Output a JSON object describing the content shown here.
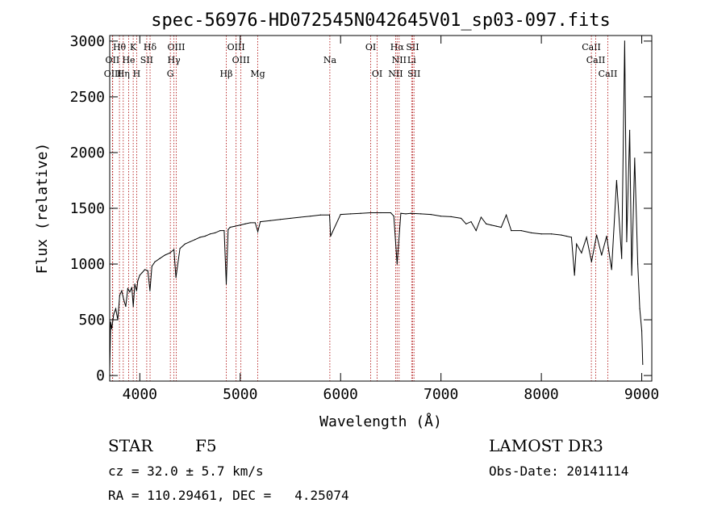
{
  "chart_data": {
    "type": "line",
    "title": "spec-56976-HD072545N042645V01_sp03-097.fits",
    "xlabel": "Wavelength (Å)",
    "ylabel": "Flux (relative)",
    "xlim": [
      3700,
      9100
    ],
    "ylim": [
      -50,
      3050
    ],
    "xticks": [
      4000,
      5000,
      6000,
      7000,
      8000,
      9000
    ],
    "yticks": [
      0,
      500,
      1000,
      1500,
      2000,
      2500,
      3000
    ],
    "grid": false,
    "line_color": "#000000",
    "marker_color": "#aa0000",
    "series": [
      {
        "x": [
          3700,
          3710,
          3720,
          3740,
          3760,
          3780,
          3800,
          3820,
          3840,
          3860,
          3880,
          3900,
          3920,
          3935,
          3950,
          3968,
          3980,
          4000,
          4020,
          4050,
          4080,
          4101,
          4120,
          4150,
          4200,
          4250,
          4300,
          4340,
          4360,
          4400,
          4450,
          4500,
          4550,
          4600,
          4650,
          4700,
          4750,
          4800,
          4840,
          4861,
          4880,
          4900,
          4950,
          5000,
          5050,
          5100,
          5150,
          5175,
          5200,
          5300,
          5400,
          5500,
          5600,
          5700,
          5800,
          5890,
          5900,
          6000,
          6100,
          6200,
          6300,
          6400,
          6500,
          6530,
          6563,
          6600,
          6650,
          6700,
          6800,
          6900,
          7000,
          7100,
          7200,
          7250,
          7300,
          7350,
          7400,
          7450,
          7500,
          7550,
          7600,
          7650,
          7700,
          7800,
          7900,
          8000,
          8100,
          8200,
          8250,
          8300,
          8330,
          8350,
          8400,
          8450,
          8500,
          8550,
          8600,
          8650,
          8700,
          8750,
          8800,
          8830,
          8850,
          8880,
          8900,
          8930,
          8960,
          8980,
          9000,
          9010
        ],
        "y": [
          50,
          480,
          420,
          550,
          600,
          500,
          720,
          760,
          680,
          620,
          780,
          750,
          790,
          620,
          820,
          760,
          850,
          900,
          920,
          950,
          940,
          760,
          980,
          1020,
          1050,
          1080,
          1100,
          1130,
          880,
          1140,
          1180,
          1200,
          1220,
          1240,
          1250,
          1270,
          1280,
          1300,
          1300,
          820,
          1310,
          1330,
          1340,
          1350,
          1360,
          1370,
          1370,
          1290,
          1380,
          1390,
          1400,
          1410,
          1420,
          1430,
          1440,
          1440,
          1250,
          1445,
          1450,
          1455,
          1460,
          1460,
          1460,
          1430,
          1000,
          1455,
          1450,
          1455,
          1450,
          1445,
          1430,
          1425,
          1410,
          1360,
          1380,
          1300,
          1420,
          1360,
          1350,
          1340,
          1330,
          1440,
          1300,
          1300,
          1280,
          1270,
          1270,
          1260,
          1250,
          1240,
          900,
          1180,
          1100,
          1240,
          1020,
          1260,
          1080,
          1250,
          950,
          1750,
          1050,
          3000,
          1200,
          2200,
          900,
          1950,
          1000,
          600,
          400,
          100
        ]
      }
    ],
    "lines": [
      {
        "label": "Hθ",
        "x": 3797,
        "row": 1
      },
      {
        "label": "K",
        "x": 3934,
        "row": 1
      },
      {
        "label": "Hδ",
        "x": 4102,
        "row": 1
      },
      {
        "label": "OIII",
        "x": 4363,
        "row": 1
      },
      {
        "label": "OIII",
        "x": 4959,
        "row": 1
      },
      {
        "label": "OI",
        "x": 6300,
        "row": 1
      },
      {
        "label": "Hα",
        "x": 6563,
        "row": 1
      },
      {
        "label": "SII",
        "x": 6717,
        "row": 1
      },
      {
        "label": "CaII",
        "x": 8498,
        "row": 1
      },
      {
        "label": "OII",
        "x": 3727,
        "row": 2
      },
      {
        "label": "He",
        "x": 3889,
        "row": 2
      },
      {
        "label": "SII",
        "x": 4069,
        "row": 2
      },
      {
        "label": "Hγ",
        "x": 4340,
        "row": 2
      },
      {
        "label": "OIII",
        "x": 5007,
        "row": 2
      },
      {
        "label": "Na",
        "x": 5893,
        "row": 2
      },
      {
        "label": "NII",
        "x": 6583,
        "row": 2
      },
      {
        "label": "Li",
        "x": 6708,
        "row": 2
      },
      {
        "label": "CaII",
        "x": 8542,
        "row": 2
      },
      {
        "label": "OIII",
        "x": 3730,
        "row": 3
      },
      {
        "label": "Hη",
        "x": 3835,
        "row": 3
      },
      {
        "label": "H",
        "x": 3969,
        "row": 3
      },
      {
        "label": "G",
        "x": 4304,
        "row": 3
      },
      {
        "label": "Hβ",
        "x": 4861,
        "row": 3
      },
      {
        "label": "Mg",
        "x": 5175,
        "row": 3
      },
      {
        "label": "OI",
        "x": 6364,
        "row": 3
      },
      {
        "label": "NII",
        "x": 6548,
        "row": 3
      },
      {
        "label": "SII",
        "x": 6731,
        "row": 3
      },
      {
        "label": "CaII",
        "x": 8662,
        "row": 3
      }
    ]
  },
  "info": {
    "object_class": "STAR",
    "subclass": "F5",
    "survey": "LAMOST DR3",
    "cz": "cz = 32.0 ± 5.7 km/s",
    "obs_date": "Obs-Date: 20141114",
    "radec": "RA = 110.29461, DEC =   4.25074"
  }
}
